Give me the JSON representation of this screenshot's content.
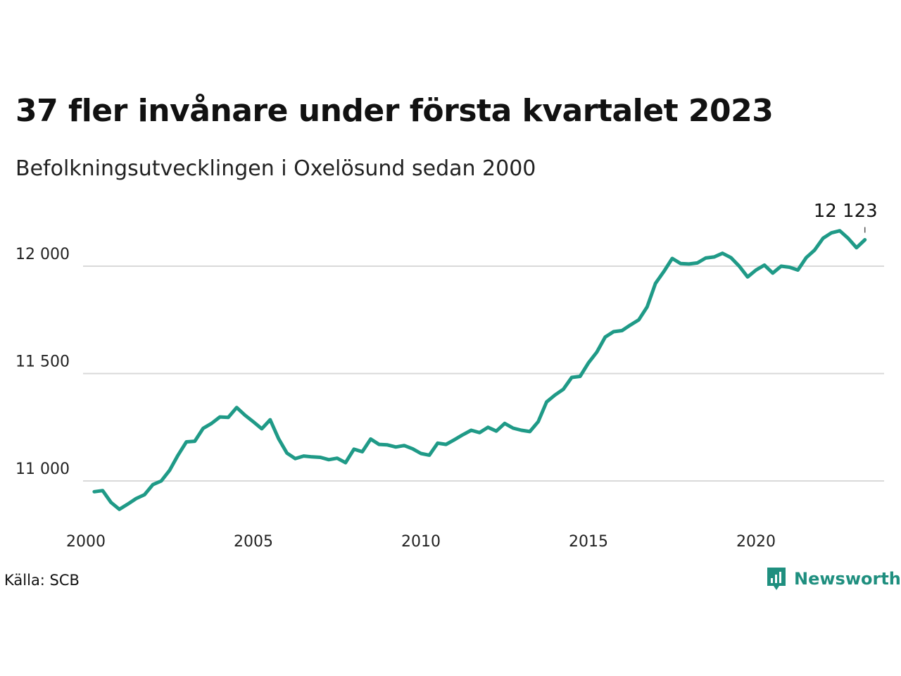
{
  "chart_data": {
    "type": "line",
    "title": "37 fler invånare under första kvartalet 2023",
    "subtitle": "Befolkningsutvecklingen i Oxelösund sedan 2000",
    "xlabel": "",
    "ylabel": "",
    "xlim": [
      2000,
      2024
    ],
    "ylim": [
      10800,
      12250
    ],
    "x_ticks": [
      2000,
      2005,
      2010,
      2015,
      2020
    ],
    "x_tick_labels": [
      "2000",
      "2005",
      "2010",
      "2015",
      "2020"
    ],
    "y_ticks": [
      11000,
      11500,
      12000
    ],
    "y_tick_labels": [
      "11 000",
      "11 500",
      "12 000"
    ],
    "grid": "horizontal",
    "line_color": "#1f9a87",
    "end_label": "12 123",
    "series": [
      {
        "x": [
          2000.25,
          2000.5,
          2000.75,
          2001.0,
          2001.25,
          2001.5,
          2001.75,
          2002.0,
          2002.25,
          2002.5,
          2002.75,
          2003.0,
          2003.25,
          2003.5,
          2003.75,
          2004.0,
          2004.25,
          2004.5,
          2004.75,
          2005.0,
          2005.25,
          2005.5,
          2005.75,
          2006.0,
          2006.25,
          2006.5,
          2006.75,
          2007.0,
          2007.25,
          2007.5,
          2007.75,
          2008.0,
          2008.25,
          2008.5,
          2008.75,
          2009.0,
          2009.25,
          2009.5,
          2009.75,
          2010.0,
          2010.25,
          2010.5,
          2010.75,
          2011.0,
          2011.25,
          2011.5,
          2011.75,
          2012.0,
          2012.25,
          2012.5,
          2012.75,
          2013.0,
          2013.25,
          2013.5,
          2013.75,
          2014.0,
          2014.25,
          2014.5,
          2014.75,
          2015.0,
          2015.25,
          2015.5,
          2015.75,
          2016.0,
          2016.25,
          2016.5,
          2016.75,
          2017.0,
          2017.25,
          2017.5,
          2017.75,
          2018.0,
          2018.25,
          2018.5,
          2018.75,
          2019.0,
          2019.25,
          2019.5,
          2019.75,
          2020.0,
          2020.25,
          2020.5,
          2020.75,
          2021.0,
          2021.25,
          2021.5,
          2021.75,
          2022.0,
          2022.25,
          2022.5,
          2022.75,
          2023.0,
          2023.25
        ],
        "values": [
          10950,
          10955,
          10900,
          10868,
          10892,
          10918,
          10936,
          10983,
          11000,
          11050,
          11120,
          11182,
          11185,
          11245,
          11268,
          11298,
          11296,
          11342,
          11306,
          11275,
          11243,
          11285,
          11197,
          11130,
          11104,
          11116,
          11112,
          11110,
          11099,
          11106,
          11085,
          11148,
          11136,
          11195,
          11170,
          11168,
          11158,
          11165,
          11150,
          11128,
          11120,
          11176,
          11170,
          11192,
          11215,
          11236,
          11225,
          11250,
          11232,
          11268,
          11246,
          11236,
          11230,
          11276,
          11368,
          11400,
          11427,
          11482,
          11487,
          11550,
          11600,
          11670,
          11695,
          11700,
          11726,
          11750,
          11810,
          11920,
          11975,
          12036,
          12012,
          12010,
          12015,
          12038,
          12043,
          12060,
          12040,
          12000,
          11950,
          11982,
          12005,
          11968,
          12000,
          11995,
          11982,
          12040,
          12075,
          12130,
          12155,
          12165,
          12130,
          12086,
          12123
        ]
      }
    ]
  },
  "source": "Källa: SCB",
  "brand": "Newsworthy",
  "brand_icon": "newsworthy-logo-icon"
}
